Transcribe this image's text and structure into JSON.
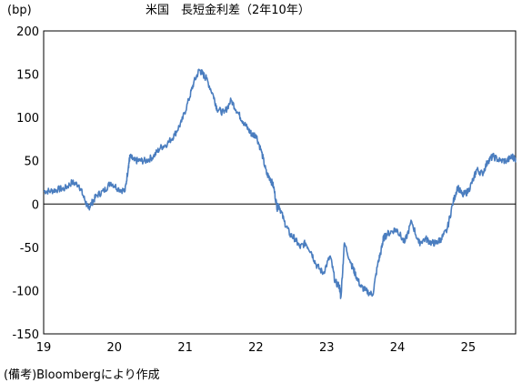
{
  "chart_data": {
    "type": "line",
    "title": "米国　長短金利差（2年10年）",
    "unit_label": "(bp)",
    "source_note": "(備考)Bloombergにより作成",
    "xlabel": "",
    "ylabel": "",
    "x_tick_labels": [
      "19",
      "20",
      "21",
      "22",
      "23",
      "24",
      "25"
    ],
    "xlim": [
      2019.0,
      2025.67
    ],
    "y_tick_labels": [
      "200",
      "150",
      "100",
      "50",
      "0",
      "-50",
      "-100",
      "-150"
    ],
    "ylim": [
      -150,
      200
    ],
    "y_ticks": [
      200,
      150,
      100,
      50,
      0,
      -50,
      -100,
      -150
    ],
    "grid": false,
    "zero_line": true,
    "line_color": "#4a7dbf",
    "series": [
      {
        "x": [
          2019.0,
          2019.1,
          2019.2,
          2019.3,
          2019.4,
          2019.5,
          2019.58,
          2019.63,
          2019.67,
          2019.75,
          2019.85,
          2019.95,
          2020.05,
          2020.15,
          2020.2,
          2020.22,
          2020.28,
          2020.35,
          2020.45,
          2020.55,
          2020.65,
          2020.75,
          2020.85,
          2020.95,
          2021.05,
          2021.12,
          2021.2,
          2021.25,
          2021.3,
          2021.4,
          2021.45,
          2021.55,
          2021.65,
          2021.75,
          2021.82,
          2021.9,
          2021.95,
          2022.0,
          2022.08,
          2022.15,
          2022.2,
          2022.25,
          2022.3,
          2022.32,
          2022.4,
          2022.48,
          2022.55,
          2022.62,
          2022.7,
          2022.78,
          2022.85,
          2022.95,
          2023.05,
          2023.12,
          2023.18,
          2023.2,
          2023.25,
          2023.35,
          2023.4,
          2023.48,
          2023.55,
          2023.65,
          2023.72,
          2023.78,
          2023.8,
          2023.85,
          2023.95,
          2024.0,
          2024.1,
          2024.2,
          2024.3,
          2024.4,
          2024.48,
          2024.55,
          2024.62,
          2024.7,
          2024.78,
          2024.85,
          2024.92,
          2025.0,
          2025.08,
          2025.12,
          2025.2,
          2025.28,
          2025.35,
          2025.45,
          2025.55,
          2025.62,
          2025.67
        ],
        "y": [
          15,
          15,
          17,
          18,
          25,
          22,
          5,
          -5,
          0,
          10,
          15,
          25,
          18,
          15,
          45,
          55,
          50,
          50,
          50,
          55,
          65,
          70,
          80,
          95,
          120,
          140,
          155,
          150,
          145,
          125,
          110,
          105,
          120,
          105,
          95,
          85,
          80,
          80,
          60,
          35,
          30,
          20,
          -5,
          0,
          -20,
          -35,
          -40,
          -50,
          -45,
          -55,
          -70,
          -80,
          -60,
          -90,
          -95,
          -108,
          -45,
          -70,
          -80,
          -95,
          -100,
          -105,
          -70,
          -50,
          -40,
          -35,
          -30,
          -30,
          -45,
          -20,
          -45,
          -40,
          -45,
          -45,
          -40,
          -30,
          0,
          20,
          10,
          15,
          30,
          40,
          35,
          50,
          55,
          50,
          50,
          55,
          52
        ]
      }
    ]
  }
}
